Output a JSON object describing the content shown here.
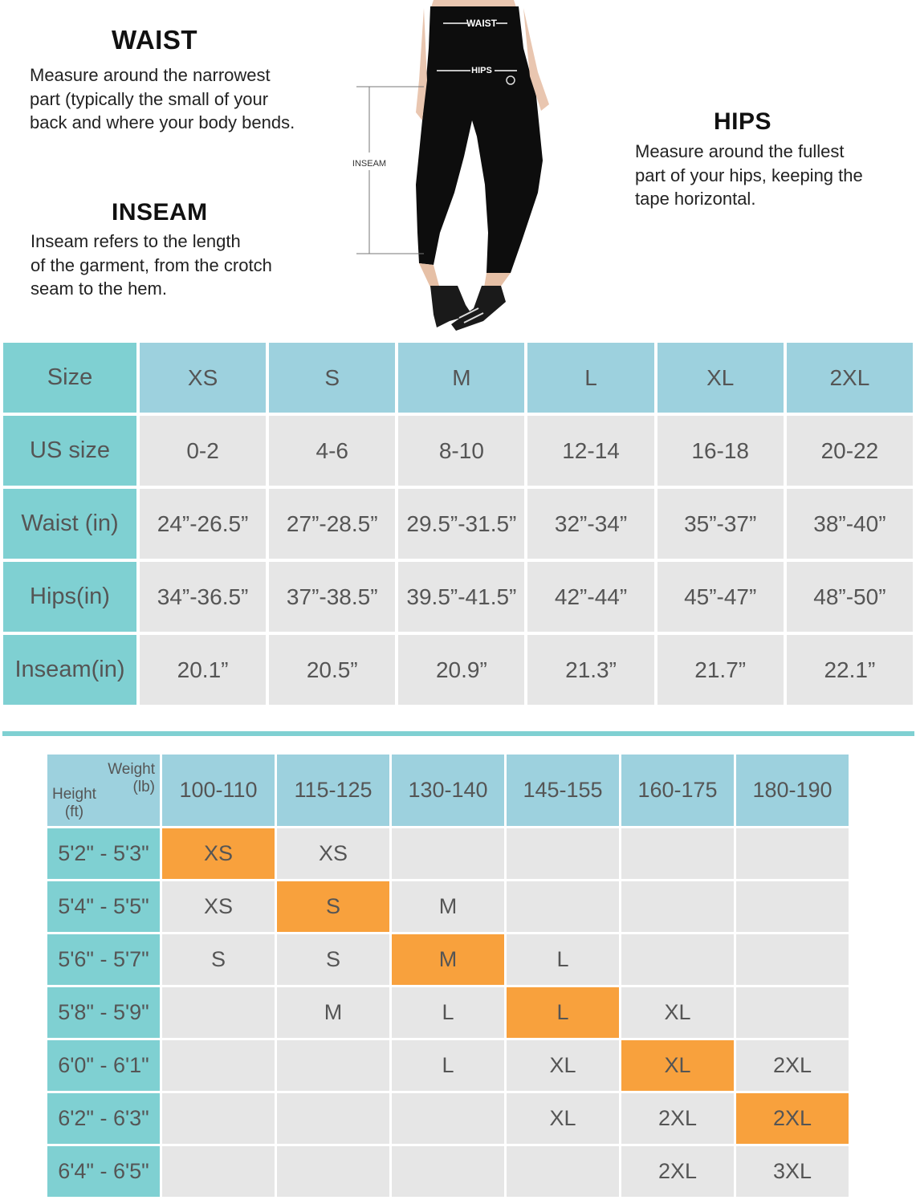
{
  "guide": {
    "waist": {
      "title": "WAIST",
      "lines": [
        "Measure around the narrowest",
        "part (typically the small of your",
        "back and where your body bends."
      ]
    },
    "inseam": {
      "title": "INSEAM",
      "lines": [
        "Inseam refers to the length",
        "of the garment, from the crotch",
        "seam to the hem."
      ]
    },
    "hips": {
      "title": "HIPS",
      "lines": [
        "Measure around the fullest",
        "part of your hips, keeping the",
        "tape horizontal."
      ]
    }
  },
  "figure": {
    "waist_label": "WAIST",
    "hips_label": "HIPS",
    "inseam_label": "INSEAM"
  },
  "size_chart": {
    "rows": [
      {
        "label": "Size",
        "values": [
          "XS",
          "S",
          "M",
          "L",
          "XL",
          "2XL"
        ]
      },
      {
        "label": "US size",
        "values": [
          "0-2",
          "4-6",
          "8-10",
          "12-14",
          "16-18",
          "20-22"
        ]
      },
      {
        "label": "Waist (in)",
        "values": [
          "24”-26.5”",
          "27”-28.5”",
          "29.5”-31.5”",
          "32”-34”",
          "35”-37”",
          "38”-40”"
        ]
      },
      {
        "label": "Hips(in)",
        "values": [
          "34”-36.5”",
          "37”-38.5”",
          "39.5”-41.5”",
          "42”-44”",
          "45”-47”",
          "48”-50”"
        ]
      },
      {
        "label": "Inseam(in)",
        "values": [
          "20.1”",
          "20.5”",
          "20.9”",
          "21.3”",
          "21.7”",
          "22.1”"
        ]
      }
    ]
  },
  "height_weight": {
    "corner_weight_lines": [
      "Weight",
      "(lb)"
    ],
    "corner_height_lines": [
      "Height",
      "(ft)"
    ],
    "weights": [
      "100-110",
      "115-125",
      "130-140",
      "145-155",
      "160-175",
      "180-190"
    ],
    "rows": [
      {
        "height": "5'2\" - 5'3\"",
        "cells": [
          "XS",
          "XS",
          "",
          "",
          "",
          ""
        ],
        "highlight": 0
      },
      {
        "height": "5'4\" - 5'5\"",
        "cells": [
          "XS",
          "S",
          "M",
          "",
          "",
          ""
        ],
        "highlight": 1
      },
      {
        "height": "5'6\" - 5'7\"",
        "cells": [
          "S",
          "S",
          "M",
          "L",
          "",
          ""
        ],
        "highlight": 2
      },
      {
        "height": "5'8\" - 5'9\"",
        "cells": [
          "",
          "M",
          "L",
          "L",
          "XL",
          ""
        ],
        "highlight": 3
      },
      {
        "height": "6'0\" - 6'1\"",
        "cells": [
          "",
          "",
          "L",
          "XL",
          "XL",
          "2XL"
        ],
        "highlight": 4
      },
      {
        "height": "6'2\" - 6'3\"",
        "cells": [
          "",
          "",
          "",
          "XL",
          "2XL",
          "2XL"
        ],
        "highlight": 5
      },
      {
        "height": "6'4\" - 6'5\"",
        "cells": [
          "",
          "",
          "",
          "",
          "2XL",
          "3XL"
        ],
        "highlight": -1
      }
    ],
    "highlight_color": "#f8a13d"
  },
  "colors": {
    "teal": "#7fd0d2",
    "light_blue": "#9dd1de",
    "cell_gray": "#e6e6e6"
  }
}
